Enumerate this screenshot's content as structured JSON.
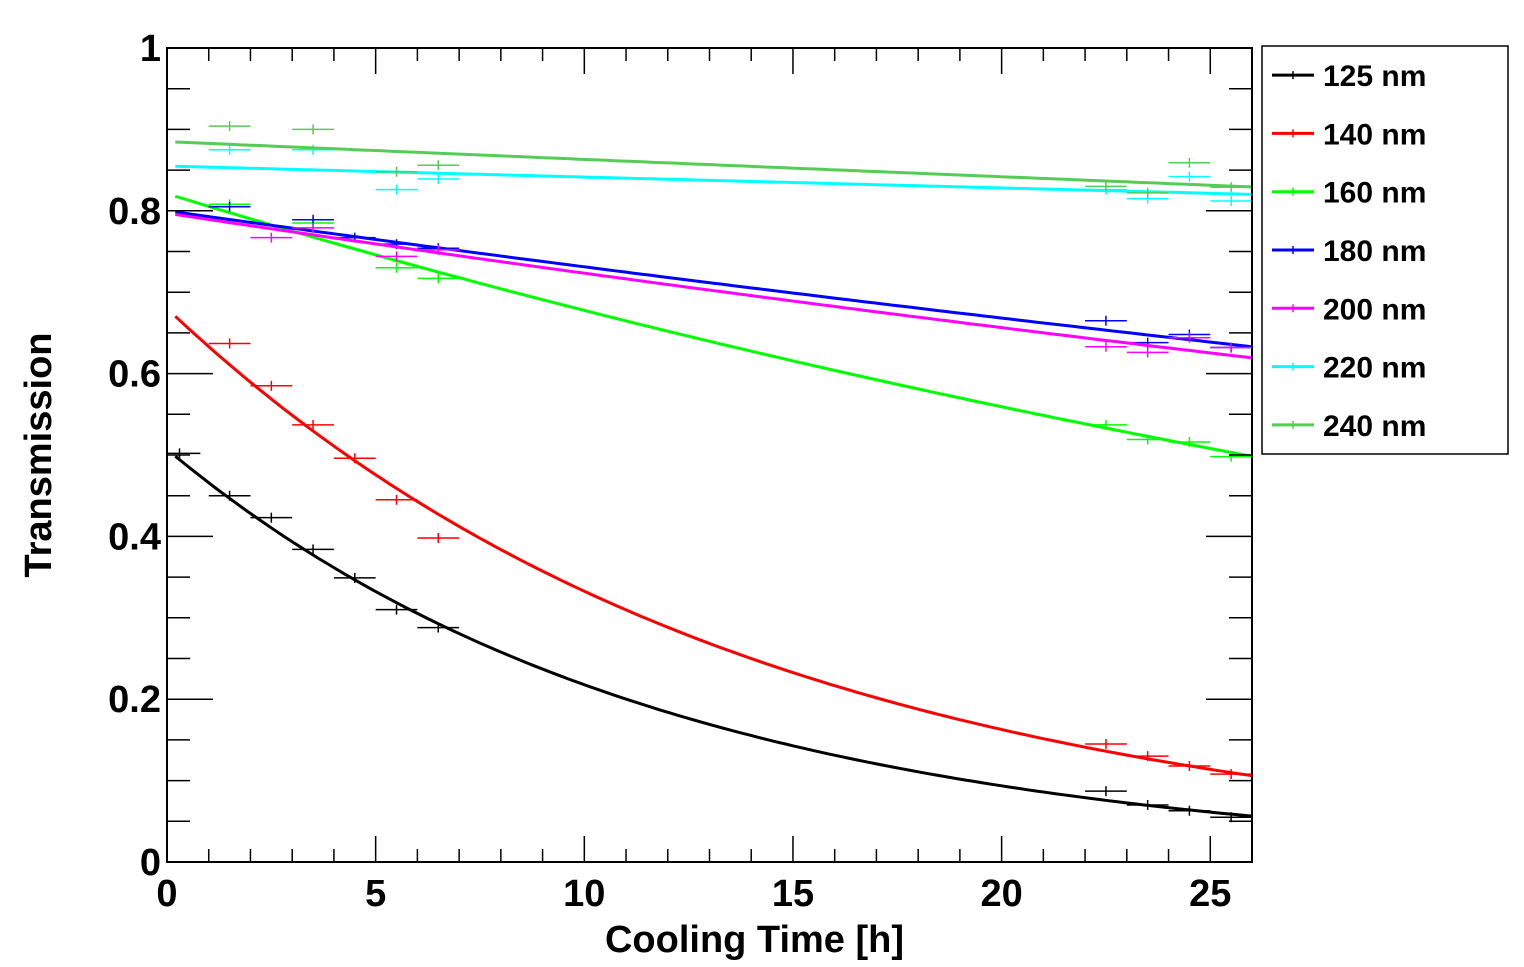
{
  "chart_data": {
    "type": "line",
    "title": "",
    "xlabel": "Cooling Time [h]",
    "ylabel": "Transmission",
    "xlim": [
      0,
      26
    ],
    "ylim": [
      0,
      1
    ],
    "grid": false,
    "legend_position": "right",
    "x_ticks": [
      0,
      5,
      10,
      15,
      20,
      25
    ],
    "y_ticks": [
      0,
      0.2,
      0.4,
      0.6,
      0.8,
      1
    ],
    "x_tick_labels": [
      "0",
      "5",
      "10",
      "15",
      "20",
      "25"
    ],
    "y_tick_labels": [
      "0",
      "0.2",
      "0.4",
      "0.6",
      "0.8",
      "1"
    ],
    "series": [
      {
        "name": "125 nm",
        "color": "#000000",
        "fit": {
          "model": "exp",
          "a": 0.507,
          "k": 0.0845
        },
        "points": [
          [
            0.3,
            0.502
          ],
          [
            1.5,
            0.45
          ],
          [
            2.5,
            0.423
          ],
          [
            3.5,
            0.384
          ],
          [
            4.5,
            0.349
          ],
          [
            5.5,
            0.31
          ],
          [
            6.5,
            0.288
          ],
          [
            22.5,
            0.087
          ],
          [
            23.5,
            0.07
          ],
          [
            24.5,
            0.063
          ],
          [
            25.5,
            0.055
          ]
        ]
      },
      {
        "name": "140 nm",
        "color": "#ff0000",
        "fit": {
          "model": "exp",
          "a": 0.68,
          "k": 0.0715
        },
        "points": [
          [
            1.5,
            0.637
          ],
          [
            2.5,
            0.585
          ],
          [
            3.5,
            0.537
          ],
          [
            4.5,
            0.496
          ],
          [
            5.5,
            0.445
          ],
          [
            6.5,
            0.398
          ],
          [
            22.5,
            0.145
          ],
          [
            23.5,
            0.13
          ],
          [
            24.5,
            0.118
          ],
          [
            25.5,
            0.108
          ]
        ]
      },
      {
        "name": "160 nm",
        "color": "#00ff00",
        "fit": {
          "model": "exp",
          "a": 0.821,
          "k": 0.0192
        },
        "points": [
          [
            1.5,
            0.808
          ],
          [
            3.5,
            0.785
          ],
          [
            5.5,
            0.73
          ],
          [
            6.5,
            0.717
          ],
          [
            22.5,
            0.537
          ],
          [
            23.5,
            0.519
          ],
          [
            24.5,
            0.516
          ],
          [
            25.5,
            0.498
          ]
        ]
      },
      {
        "name": "180 nm",
        "color": "#0000ff",
        "fit": {
          "model": "exp",
          "a": 0.8,
          "k": 0.009
        },
        "points": [
          [
            1.5,
            0.805
          ],
          [
            3.5,
            0.789
          ],
          [
            4.5,
            0.767
          ],
          [
            5.5,
            0.759
          ],
          [
            6.5,
            0.754
          ],
          [
            22.5,
            0.665
          ],
          [
            23.5,
            0.638
          ],
          [
            24.5,
            0.648
          ],
          [
            25.5,
            0.632
          ]
        ]
      },
      {
        "name": "200 nm",
        "color": "#ff00ff",
        "fit": {
          "model": "exp",
          "a": 0.797,
          "k": 0.0097
        },
        "points": [
          [
            2.5,
            0.767
          ],
          [
            3.5,
            0.779
          ],
          [
            5.5,
            0.744
          ],
          [
            6.5,
            0.752
          ],
          [
            22.5,
            0.633
          ],
          [
            23.5,
            0.626
          ],
          [
            24.5,
            0.644
          ],
          [
            25.5,
            0.632
          ]
        ]
      },
      {
        "name": "220 nm",
        "color": "#00ffff",
        "fit": {
          "model": "exp",
          "a": 0.855,
          "k": 0.0016
        },
        "points": [
          [
            1.5,
            0.875
          ],
          [
            3.5,
            0.875
          ],
          [
            5.5,
            0.826
          ],
          [
            6.5,
            0.839
          ],
          [
            22.5,
            0.826
          ],
          [
            23.5,
            0.815
          ],
          [
            24.5,
            0.842
          ],
          [
            25.5,
            0.812
          ]
        ]
      },
      {
        "name": "240 nm",
        "color": "#55cc55",
        "fit": {
          "model": "exp",
          "a": 0.885,
          "k": 0.0025
        },
        "points": [
          [
            1.5,
            0.904
          ],
          [
            3.5,
            0.9
          ],
          [
            5.5,
            0.848
          ],
          [
            6.5,
            0.856
          ],
          [
            22.5,
            0.83
          ],
          [
            23.5,
            0.822
          ],
          [
            24.5,
            0.859
          ],
          [
            25.5,
            0.829
          ]
        ]
      }
    ]
  }
}
